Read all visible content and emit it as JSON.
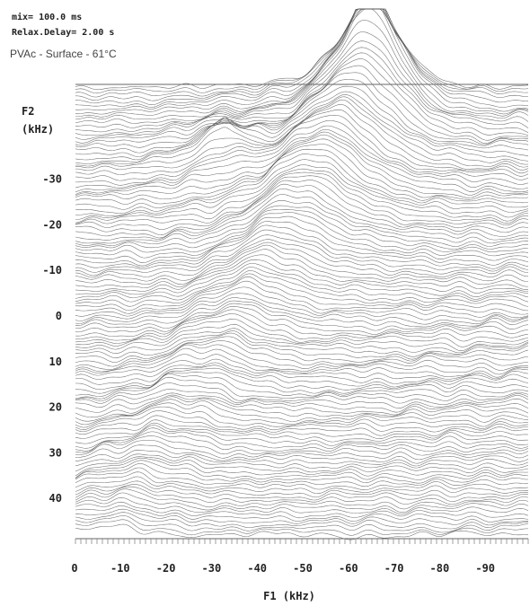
{
  "header": {
    "line1": "mix= 100.0 ms",
    "line2": "Relax.Delay= 2.00 s",
    "subtitle": "PVAc - Surface - 61°C"
  },
  "chart_data": {
    "type": "surface",
    "title": "",
    "xlabel": "F1 (kHz)",
    "ylabel": "F2\n(kHz)",
    "ylabel_line1": "F2",
    "ylabel_line2": "(kHz)",
    "x_ticks": [
      "0",
      "-10",
      "-20",
      "-30",
      "-40",
      "-50",
      "-60",
      "-70",
      "-80",
      "-90"
    ],
    "x_tick_values": [
      0,
      -10,
      -20,
      -30,
      -40,
      -50,
      -60,
      -70,
      -80,
      -90
    ],
    "xlim": [
      0,
      -100
    ],
    "y_ticks": [
      "-30",
      "-20",
      "-10",
      "0",
      "10",
      "20",
      "30",
      "40"
    ],
    "y_tick_values": [
      -30,
      -20,
      -10,
      0,
      10,
      20,
      30,
      40
    ],
    "ylim": [
      -40,
      50
    ],
    "peaks": [
      {
        "f1": -65,
        "f2": -46,
        "relative_height": 1.0
      },
      {
        "f1": -33,
        "f2": -34,
        "relative_height": 0.55
      },
      {
        "f1": -8,
        "f2": 44,
        "relative_height": 0.08
      }
    ],
    "ridge": "diagonal from (F1 -8, F2 44) to (F1 -65, F2 -46)",
    "grid": false,
    "line_color": "#555555"
  }
}
